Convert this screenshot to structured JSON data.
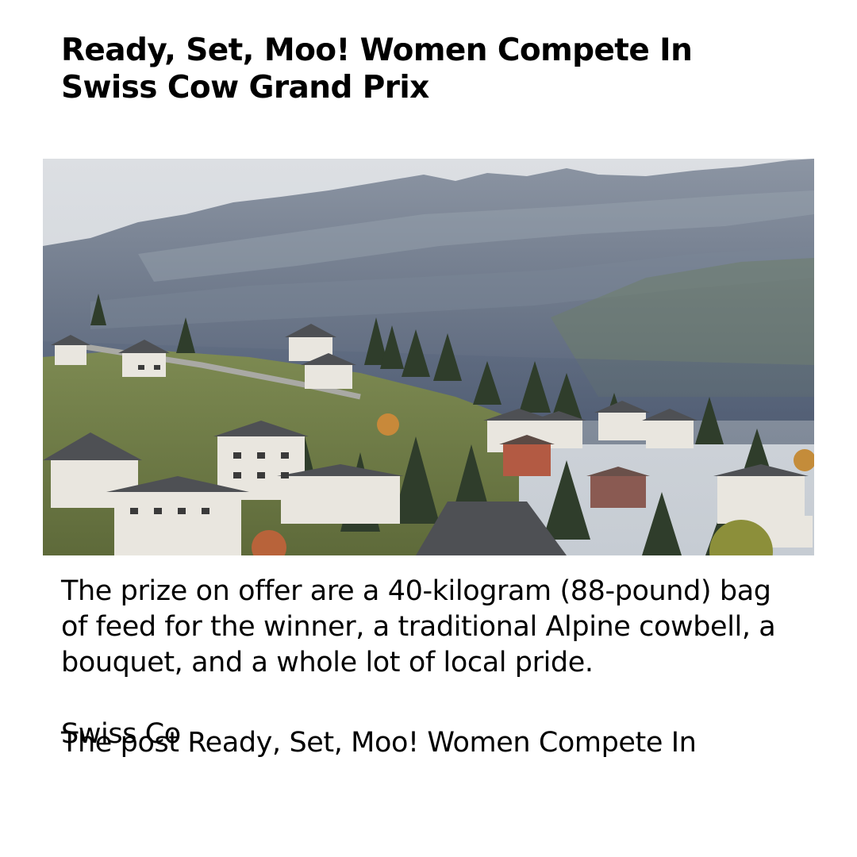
{
  "article": {
    "headline": "Ready, Set, Moo! Women Compete In Swiss Cow Grand Prix",
    "body": "The prize on offer are a 40-kilogram (88-pound) bag of feed for the winner, a traditional Alpine cowbell, a bouquet, and a whole lot of local pride.",
    "source_fragment": "Swiss Co",
    "post_line": "The post Ready, Set, Moo! Women Compete In"
  },
  "photo": {
    "subject": "alpine-village-mountains"
  }
}
